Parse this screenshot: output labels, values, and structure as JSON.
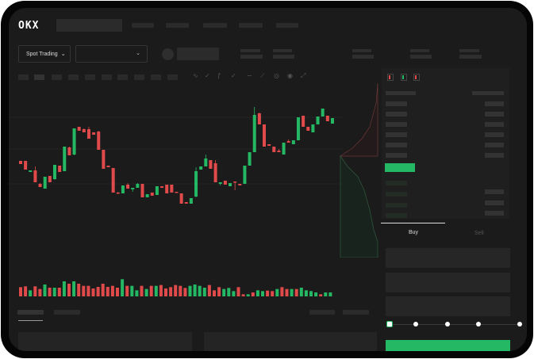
{
  "header": {
    "logo": "OKX",
    "nav_items": 5
  },
  "toolbar": {
    "market_select": "Spot Trading",
    "pair_select": "",
    "icons": [
      "line-type-icon",
      "interval-icon",
      "indicator-icon",
      "draw-icon",
      "ruler-icon",
      "camera-icon",
      "settings-icon",
      "fullscreen-icon"
    ]
  },
  "orderbook": {
    "view_icons": [
      "orderbook-both-icon",
      "orderbook-bids-icon",
      "orderbook-asks-icon"
    ]
  },
  "trade": {
    "buy_label": "Buy",
    "sell_label": "Sell",
    "active_tab": "Buy",
    "leverage_slider": 0
  },
  "colors": {
    "up": "#25b864",
    "down": "#e04a4a",
    "background": "#1b1b1b"
  },
  "chart_data": {
    "type": "candlestick",
    "ohlc": [
      [
        97,
        97,
        93,
        93
      ],
      [
        97,
        97,
        86,
        86
      ],
      [
        83,
        85,
        83,
        85
      ],
      [
        85,
        90,
        70,
        70
      ],
      [
        68,
        69,
        64,
        64
      ],
      [
        62,
        77,
        62,
        77
      ],
      [
        78,
        78,
        70,
        70
      ],
      [
        74,
        92,
        73,
        92
      ],
      [
        91,
        91,
        83,
        83
      ],
      [
        84,
        115,
        84,
        115
      ],
      [
        114,
        115,
        104,
        104
      ],
      [
        105,
        138,
        104,
        138
      ],
      [
        140,
        140,
        135,
        135
      ],
      [
        137,
        138,
        133,
        133
      ],
      [
        137,
        140,
        125,
        125
      ],
      [
        133,
        133,
        130,
        130
      ],
      [
        134,
        135,
        111,
        111
      ],
      [
        111,
        111,
        87,
        87
      ],
      [
        91,
        91,
        89,
        89
      ],
      [
        88,
        88,
        57,
        57
      ],
      [
        57,
        58,
        56,
        56
      ],
      [
        56,
        66,
        56,
        66
      ],
      [
        67,
        69,
        62,
        62
      ],
      [
        61,
        63,
        58,
        63
      ],
      [
        63,
        69,
        63,
        68
      ],
      [
        68,
        68,
        51,
        51
      ],
      [
        51,
        55,
        51,
        55
      ],
      [
        57,
        57,
        53,
        53
      ],
      [
        54,
        65,
        54,
        65
      ],
      [
        65,
        65,
        63,
        63
      ],
      [
        67,
        67,
        56,
        56
      ],
      [
        67,
        67,
        57,
        57
      ],
      [
        58,
        58,
        57,
        57
      ],
      [
        56,
        56,
        43,
        43
      ],
      [
        45,
        45,
        43,
        43
      ],
      [
        43,
        50,
        43,
        50
      ],
      [
        52,
        89,
        51,
        84
      ],
      [
        86,
        90,
        86,
        90
      ],
      [
        90,
        105,
        90,
        100
      ],
      [
        98,
        98,
        87,
        87
      ],
      [
        94,
        98,
        70,
        70
      ],
      [
        68,
        70,
        66,
        70
      ],
      [
        72,
        72,
        67,
        67
      ],
      [
        65,
        69,
        65,
        69
      ],
      [
        71,
        71,
        60,
        70
      ],
      [
        68,
        68,
        66,
        66
      ],
      [
        68,
        91,
        68,
        91
      ],
      [
        91,
        108,
        91,
        108
      ],
      [
        108,
        165,
        108,
        155
      ],
      [
        157,
        158,
        143,
        143
      ],
      [
        143,
        143,
        115,
        115
      ],
      [
        118,
        118,
        116,
        116
      ],
      [
        115,
        115,
        108,
        108
      ],
      [
        110,
        112,
        108,
        108
      ],
      [
        105,
        120,
        105,
        120
      ],
      [
        122,
        124,
        120,
        120
      ],
      [
        118,
        123,
        118,
        123
      ],
      [
        123,
        152,
        123,
        152
      ],
      [
        154,
        154,
        140,
        140
      ],
      [
        140,
        140,
        135,
        135
      ],
      [
        133,
        143,
        133,
        143
      ],
      [
        143,
        153,
        143,
        153
      ],
      [
        153,
        163,
        153,
        163
      ],
      [
        154,
        154,
        147,
        147
      ],
      [
        144,
        151,
        144,
        151
      ]
    ],
    "volume": [
      [
        35,
        "down"
      ],
      [
        38,
        "down"
      ],
      [
        23,
        "up"
      ],
      [
        38,
        "down"
      ],
      [
        28,
        "down"
      ],
      [
        45,
        "up"
      ],
      [
        33,
        "down"
      ],
      [
        33,
        "up"
      ],
      [
        33,
        "down"
      ],
      [
        57,
        "up"
      ],
      [
        48,
        "down"
      ],
      [
        57,
        "up"
      ],
      [
        48,
        "down"
      ],
      [
        40,
        "down"
      ],
      [
        40,
        "down"
      ],
      [
        30,
        "down"
      ],
      [
        36,
        "down"
      ],
      [
        48,
        "down"
      ],
      [
        36,
        "down"
      ],
      [
        40,
        "down"
      ],
      [
        33,
        "down"
      ],
      [
        65,
        "up"
      ],
      [
        40,
        "down"
      ],
      [
        40,
        "up"
      ],
      [
        23,
        "up"
      ],
      [
        40,
        "down"
      ],
      [
        28,
        "up"
      ],
      [
        40,
        "down"
      ],
      [
        40,
        "up"
      ],
      [
        43,
        "down"
      ],
      [
        30,
        "down"
      ],
      [
        35,
        "down"
      ],
      [
        43,
        "down"
      ],
      [
        40,
        "down"
      ],
      [
        32,
        "down"
      ],
      [
        40,
        "up"
      ],
      [
        45,
        "up"
      ],
      [
        40,
        "up"
      ],
      [
        33,
        "up"
      ],
      [
        43,
        "down"
      ],
      [
        23,
        "down"
      ],
      [
        35,
        "down"
      ],
      [
        28,
        "up"
      ],
      [
        32,
        "up"
      ],
      [
        20,
        "up"
      ],
      [
        35,
        "down"
      ],
      [
        8,
        "down"
      ],
      [
        8,
        "up"
      ],
      [
        15,
        "down"
      ],
      [
        23,
        "up"
      ],
      [
        20,
        "up"
      ],
      [
        22,
        "down"
      ],
      [
        20,
        "down"
      ],
      [
        28,
        "up"
      ],
      [
        35,
        "down"
      ],
      [
        28,
        "down"
      ],
      [
        28,
        "up"
      ],
      [
        28,
        "down"
      ],
      [
        33,
        "up"
      ],
      [
        23,
        "up"
      ],
      [
        20,
        "up"
      ],
      [
        15,
        "up"
      ],
      [
        8,
        "down"
      ],
      [
        15,
        "up"
      ],
      [
        15,
        "up"
      ]
    ]
  }
}
